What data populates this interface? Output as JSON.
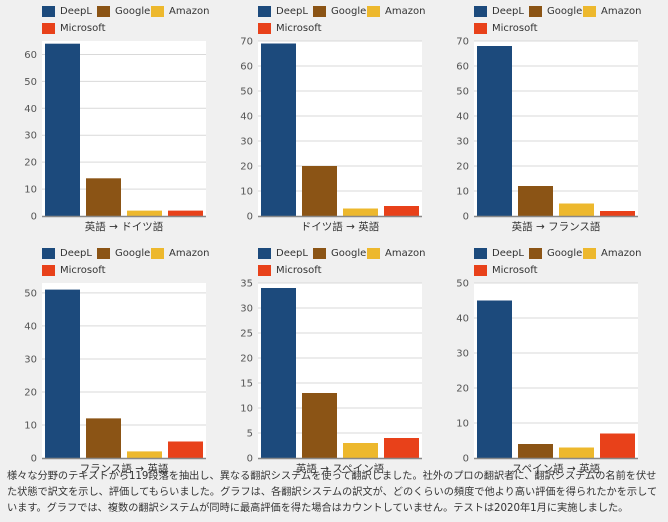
{
  "colors": {
    "DeepL": "#1c4a7c",
    "Google": "#8b5415",
    "Amazon": "#edb82d",
    "Microsoft": "#e8411a",
    "plot_bg": "#ffffff",
    "grid": "#d9d9d9",
    "axis": "#888888"
  },
  "legend": [
    "DeepL",
    "Google",
    "Amazon",
    "Microsoft"
  ],
  "chart_data": [
    {
      "type": "bar",
      "xlabel": "英語 → ドイツ語",
      "ylim": [
        0,
        65
      ],
      "ticks": [
        0,
        10,
        20,
        30,
        40,
        50,
        60
      ],
      "categories": [
        "DeepL",
        "Google",
        "Amazon",
        "Microsoft"
      ],
      "values": [
        64,
        14,
        2,
        2
      ]
    },
    {
      "type": "bar",
      "xlabel": "ドイツ語 → 英語",
      "ylim": [
        0,
        70
      ],
      "ticks": [
        0,
        10,
        20,
        30,
        40,
        50,
        60,
        70
      ],
      "categories": [
        "DeepL",
        "Google",
        "Amazon",
        "Microsoft"
      ],
      "values": [
        69,
        20,
        3,
        4
      ]
    },
    {
      "type": "bar",
      "xlabel": "英語 → フランス語",
      "ylim": [
        0,
        70
      ],
      "ticks": [
        0,
        10,
        20,
        30,
        40,
        50,
        60,
        70
      ],
      "categories": [
        "DeepL",
        "Google",
        "Amazon",
        "Microsoft"
      ],
      "values": [
        68,
        12,
        5,
        2
      ]
    },
    {
      "type": "bar",
      "xlabel": "フランス語 → 英語",
      "ylim": [
        0,
        53
      ],
      "ticks": [
        0,
        10,
        20,
        30,
        40,
        50
      ],
      "categories": [
        "DeepL",
        "Google",
        "Amazon",
        "Microsoft"
      ],
      "values": [
        51,
        12,
        2,
        5
      ]
    },
    {
      "type": "bar",
      "xlabel": "英語 → スペイン語",
      "ylim": [
        0,
        35
      ],
      "ticks": [
        0,
        5,
        10,
        15,
        20,
        25,
        30,
        35
      ],
      "categories": [
        "DeepL",
        "Google",
        "Amazon",
        "Microsoft"
      ],
      "values": [
        34,
        13,
        3,
        4
      ]
    },
    {
      "type": "bar",
      "xlabel": "スペイン語 → 英語",
      "ylim": [
        0,
        50
      ],
      "ticks": [
        0,
        10,
        20,
        30,
        40,
        50
      ],
      "categories": [
        "DeepL",
        "Google",
        "Amazon",
        "Microsoft"
      ],
      "values": [
        45,
        4,
        3,
        7
      ]
    }
  ],
  "caption": "様々な分野のテキストから119段落を抽出し、異なる翻訳システムを使って翻訳しました。社外のプロの翻訳者に、翻訳システムの名前を伏せた状態で訳文を示し、評価してもらいました。グラフは、各翻訳システムの訳文が、どのくらいの頻度で他より高い評価を得られたかを示しています。グラフでは、複数の翻訳システムが同時に最高評価を得た場合はカウントしていません。テストは2020年1月に実施しました。"
}
